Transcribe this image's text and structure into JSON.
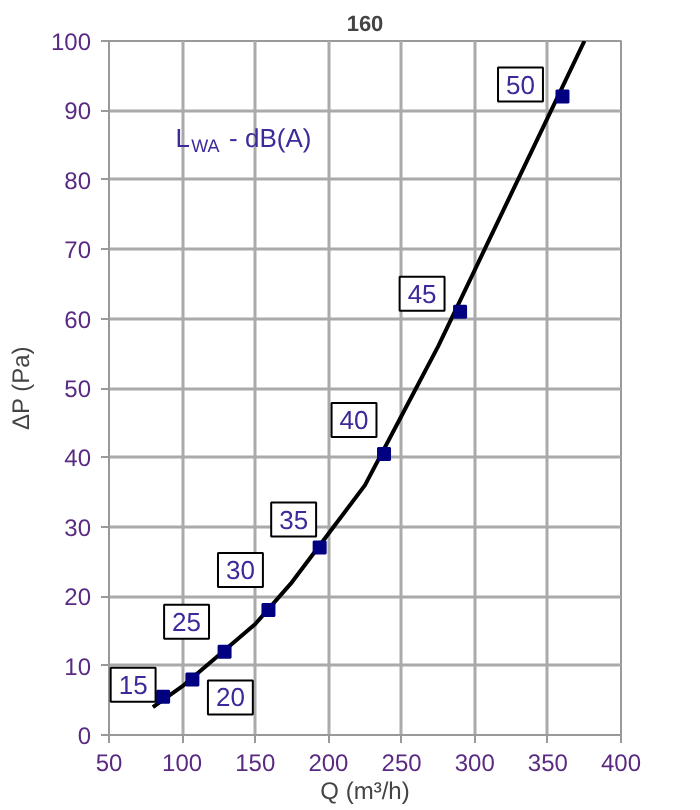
{
  "chart_data": {
    "type": "line",
    "title": "160",
    "xlabel": "Q (m³/h)",
    "ylabel": "ΔP (Pa)",
    "xlim": [
      50,
      400
    ],
    "ylim": [
      0,
      100
    ],
    "xticks": [
      50,
      100,
      150,
      200,
      250,
      300,
      350,
      400
    ],
    "yticks": [
      0,
      10,
      20,
      30,
      40,
      50,
      60,
      70,
      80,
      90,
      100
    ],
    "grid": true,
    "series": [
      {
        "color": "#000000",
        "x": [
          80,
          100,
          125,
          150,
          175,
          200,
          225,
          250,
          275,
          300,
          325,
          350,
          375
        ],
        "values": [
          4,
          7,
          11.5,
          16,
          22,
          29,
          36,
          46,
          56,
          67,
          78,
          89,
          100
        ]
      },
      {
        "type": "scatter",
        "color": "#000080",
        "marker": "square",
        "x": [
          87,
          107,
          129,
          159,
          194,
          238,
          290,
          360
        ],
        "values": [
          5.5,
          8,
          12,
          18,
          27,
          40.5,
          61,
          92
        ]
      }
    ],
    "annotations": [
      "L$_{WA}$ - dB(A)",
      {
        "text": "15",
        "x": 87,
        "y": 5.5
      },
      {
        "text": "20",
        "x": 107,
        "y": 8
      },
      {
        "text": "25",
        "x": 129,
        "y": 12
      },
      {
        "text": "30",
        "x": 159,
        "y": 18
      },
      {
        "text": "35",
        "x": 194,
        "y": 27
      },
      {
        "text": "40",
        "x": 238,
        "y": 40.5
      },
      {
        "text": "45",
        "x": 290,
        "y": 61
      },
      {
        "text": "50",
        "x": 360,
        "y": 92
      }
    ]
  }
}
